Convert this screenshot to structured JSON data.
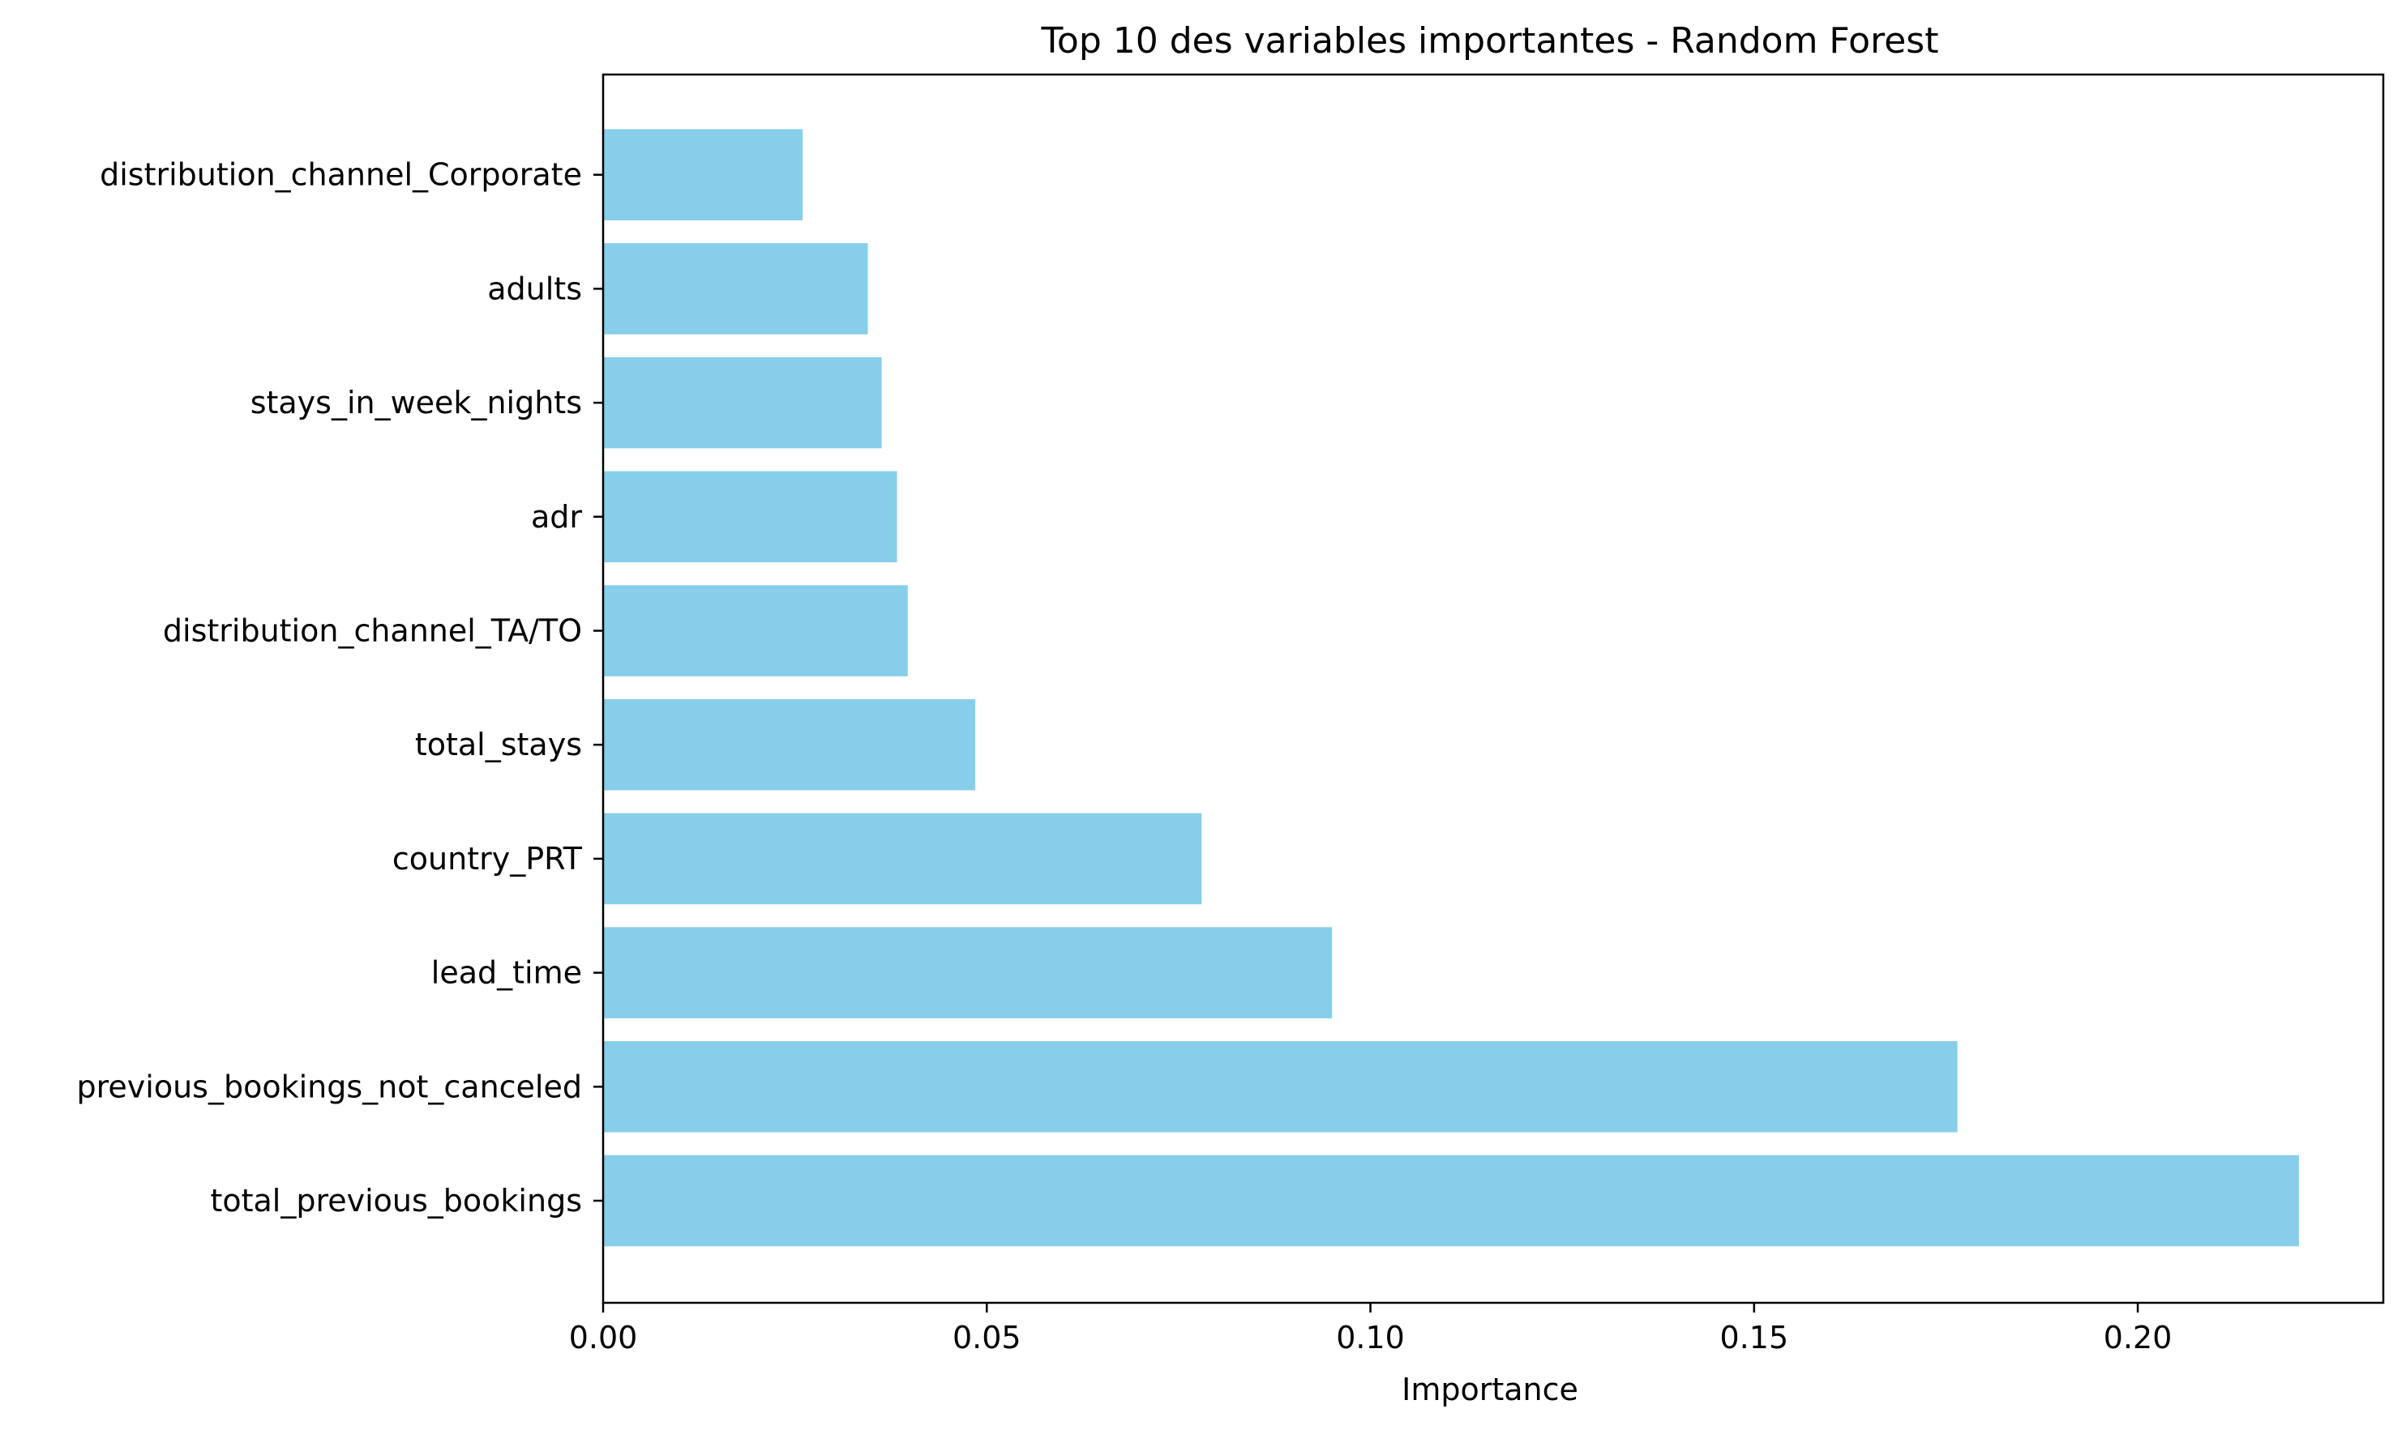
{
  "chart_data": {
    "type": "bar",
    "orientation": "horizontal",
    "title": "Top 10 des variables importantes - Random Forest",
    "xlabel": "Importance",
    "ylabel": "",
    "categories": [
      "total_previous_bookings",
      "previous_bookings_not_canceled",
      "lead_time",
      "country_PRT",
      "total_stays",
      "distribution_channel_TA/TO",
      "adr",
      "stays_in_week_nights",
      "adults",
      "distribution_channel_Corporate"
    ],
    "values": [
      0.221,
      0.1765,
      0.095,
      0.078,
      0.0485,
      0.0397,
      0.0383,
      0.0363,
      0.0345,
      0.026
    ],
    "xlim": [
      0,
      0.232
    ],
    "xticks": [
      0.0,
      0.05,
      0.1,
      0.15,
      0.2
    ],
    "xtick_labels": [
      "0.00",
      "0.05",
      "0.10",
      "0.15",
      "0.20"
    ],
    "bar_color": "#87ceeb",
    "grid": false,
    "legend": false
  }
}
